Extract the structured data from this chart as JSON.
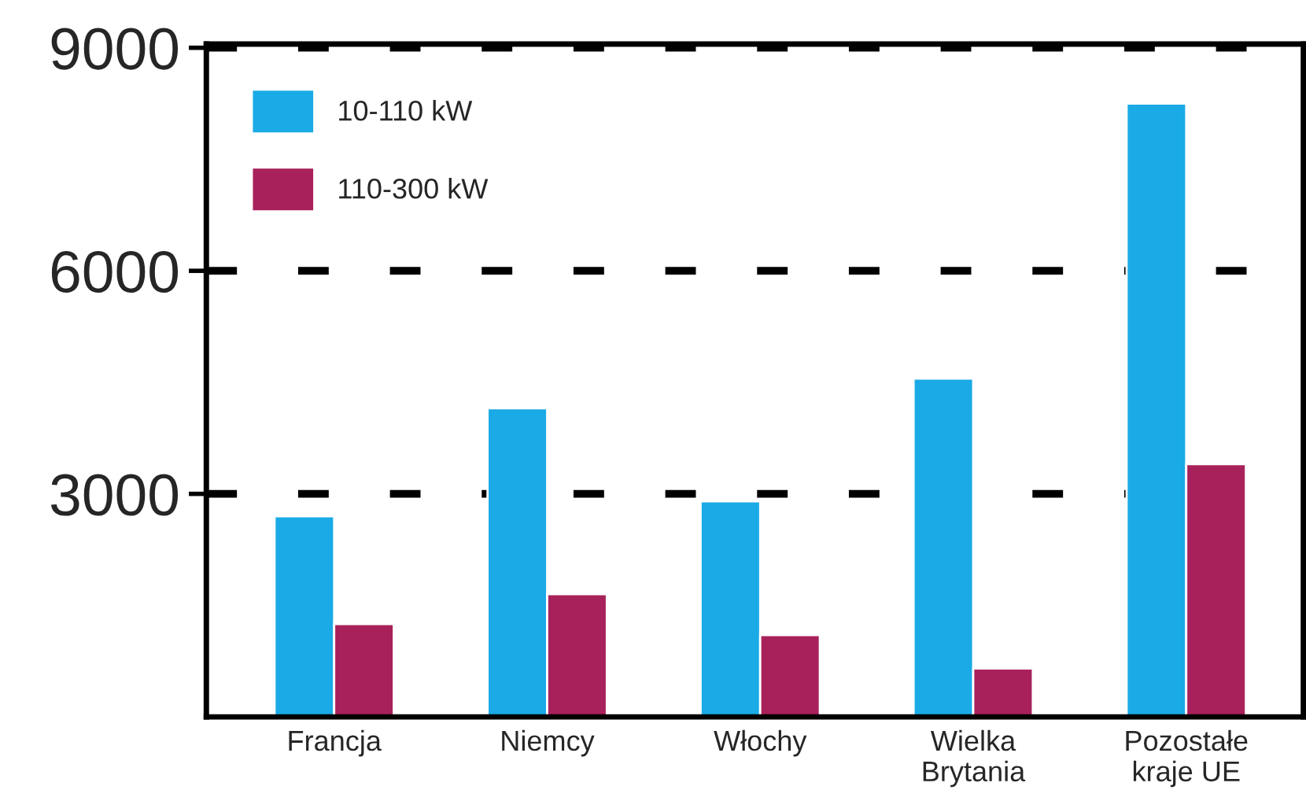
{
  "chart_data": {
    "type": "bar",
    "categories": [
      "Francja",
      "Niemcy",
      "Włochy",
      "Wielka\nBrytania",
      "Pozostałe\nkraje UE"
    ],
    "series": [
      {
        "name": "10-110 kW",
        "color": "#1aaae6",
        "values": [
          2700,
          4150,
          2900,
          4550,
          8250
        ]
      },
      {
        "name": "110-300 kW",
        "color": "#a8215a",
        "values": [
          1250,
          1650,
          1100,
          650,
          3400
        ]
      }
    ],
    "ylim": [
      0,
      9050
    ],
    "yticks": [
      3000,
      6000,
      9000
    ],
    "grid": "y",
    "legend": "top left"
  }
}
